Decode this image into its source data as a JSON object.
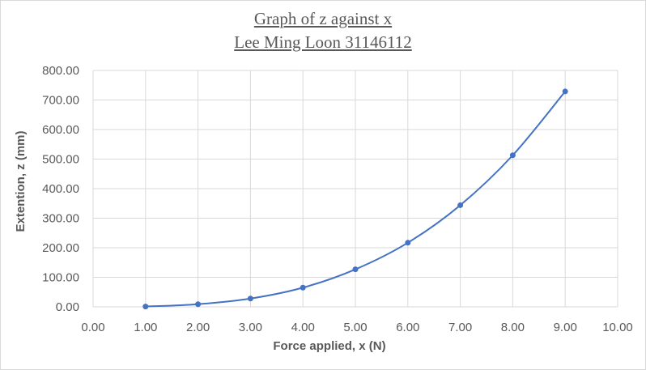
{
  "chart_data": {
    "type": "scatter",
    "title": "Graph of z against x",
    "subtitle": "Lee Ming Loon 31146112",
    "xlabel": "Force applied, x (N)",
    "ylabel": "Extention, z (mm)",
    "xlim": [
      0,
      10
    ],
    "ylim": [
      0,
      800
    ],
    "x_ticks": [
      "0.00",
      "1.00",
      "2.00",
      "3.00",
      "4.00",
      "5.00",
      "6.00",
      "7.00",
      "8.00",
      "9.00",
      "10.00"
    ],
    "y_ticks": [
      "0.00",
      "100.00",
      "200.00",
      "300.00",
      "400.00",
      "500.00",
      "600.00",
      "700.00",
      "800.00"
    ],
    "grid": true,
    "smooth_line": true,
    "series": [
      {
        "color": "#4472c4",
        "x": [
          1,
          2,
          3,
          4,
          5,
          6,
          7,
          8,
          9
        ],
        "y": [
          1,
          9,
          28,
          65,
          127,
          217,
          344,
          513,
          729
        ]
      }
    ]
  }
}
